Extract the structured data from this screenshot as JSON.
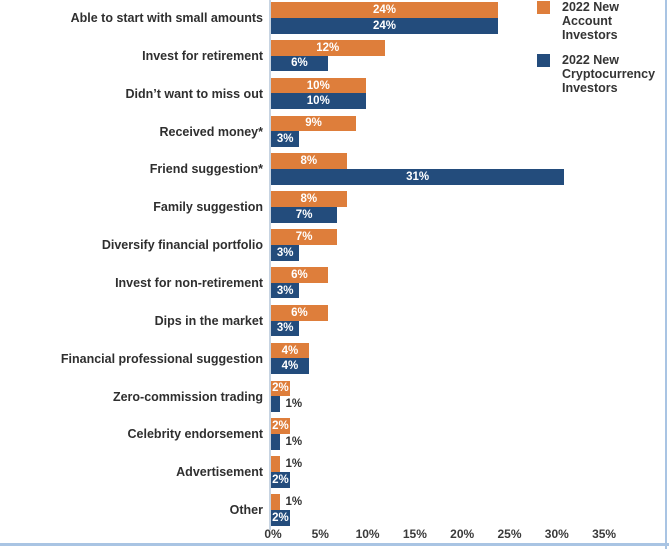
{
  "colors": {
    "account_orange": "#DE7E3B",
    "crypto_blue": "#234C7C",
    "axis_line": "#C7D4E2",
    "frame_border": "#A9C4E3",
    "inside_label": "#FFFFFF",
    "outside_label": "#303030"
  },
  "legend": {
    "items": [
      {
        "label": "2022 New\nAccount\nInvestors",
        "color_key": "account_orange"
      },
      {
        "label": "2022 New\nCryptocurrency\nInvestors",
        "color_key": "crypto_blue"
      }
    ]
  },
  "chart_data": {
    "type": "bar",
    "orientation": "horizontal",
    "title": "",
    "xlabel": "",
    "ylabel": "",
    "categories": [
      "Able to start with small amounts",
      "Invest for retirement",
      "Didn’t want to miss out",
      "Received money*",
      "Friend suggestion*",
      "Family suggestion",
      "Diversify financial portfolio",
      "Invest for non-retirement",
      "Dips in the market",
      "Financial professional suggestion",
      "Zero-commission trading",
      "Celebrity endorsement",
      "Advertisement",
      "Other"
    ],
    "series": [
      {
        "name": "2022 New Account Investors",
        "color_key": "account_orange",
        "values": [
          24,
          12,
          10,
          9,
          8,
          8,
          7,
          6,
          6,
          4,
          2,
          2,
          1,
          1
        ]
      },
      {
        "name": "2022 New Cryptocurrency Investors",
        "color_key": "crypto_blue",
        "values": [
          24,
          6,
          10,
          3,
          31,
          7,
          3,
          3,
          3,
          4,
          1,
          1,
          2,
          2
        ]
      }
    ],
    "value_suffix": "%",
    "x_ticks": [
      "0%",
      "5%",
      "10%",
      "15%",
      "20%",
      "25%",
      "30%",
      "35%"
    ],
    "xlim": [
      0,
      41.7
    ],
    "grid": false,
    "legend_position": "top-right",
    "label_inside_threshold": 2
  }
}
